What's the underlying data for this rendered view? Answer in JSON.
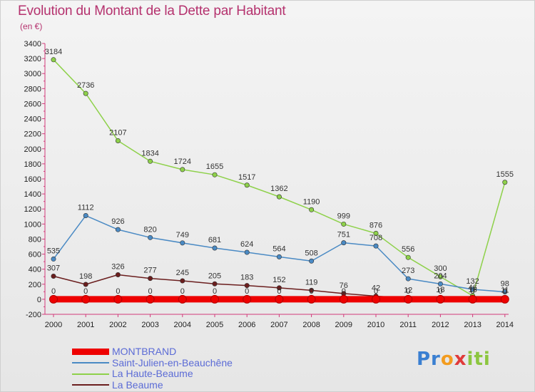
{
  "header": {
    "title": "Evolution du Montant de la Dette par Habitant",
    "unit": "(en €)"
  },
  "logo": {
    "text": "Proxiti"
  },
  "chart_data": {
    "type": "line",
    "title": "Evolution du Montant de la Dette par Habitant",
    "subtitle": "(en €)",
    "xlabel": "",
    "ylabel": "",
    "x": [
      "2000",
      "2001",
      "2002",
      "2003",
      "2004",
      "2005",
      "2006",
      "2007",
      "2008",
      "2009",
      "2010",
      "2011",
      "2012",
      "2013",
      "2014"
    ],
    "ylim": [
      -200,
      3400
    ],
    "yticks": [
      -200,
      0,
      200,
      400,
      600,
      800,
      1000,
      1200,
      1400,
      1600,
      1800,
      2000,
      2200,
      2400,
      2600,
      2800,
      3000,
      3200,
      3400
    ],
    "grid": false,
    "legend_position": "bottom-left",
    "series": [
      {
        "name": "MONTBRAND",
        "color": "#ee0000",
        "values": [
          0,
          0,
          0,
          0,
          0,
          0,
          0,
          0,
          0,
          0,
          0,
          0,
          0,
          0,
          0
        ],
        "labels": [
          "0",
          "0",
          "0",
          "0",
          "0",
          "0",
          "0",
          "0",
          "0",
          "0",
          "0",
          "0",
          "0",
          "0",
          "0"
        ]
      },
      {
        "name": "Saint-Julien-en-Beauchêne",
        "color": "#4a8ac4",
        "values": [
          535,
          1112,
          926,
          820,
          749,
          681,
          624,
          564,
          508,
          751,
          708,
          273,
          204,
          132,
          98
        ],
        "labels": [
          "535",
          "1112",
          "926",
          "820",
          "749",
          "681",
          "624",
          "564",
          "508",
          "751",
          "708",
          "273",
          "204",
          "132",
          "98"
        ]
      },
      {
        "name": "La Haute-Beaume",
        "color": "#8ed14a",
        "values": [
          3184,
          2736,
          2107,
          1834,
          1724,
          1655,
          1517,
          1362,
          1190,
          999,
          876,
          556,
          300,
          46,
          1555
        ],
        "labels": [
          "3184",
          "2736",
          "2107",
          "1834",
          "1724",
          "1655",
          "1517",
          "1362",
          "1190",
          "999",
          "876",
          "556",
          "300",
          "46",
          "1555"
        ]
      },
      {
        "name": "La Beaume",
        "color": "#6b1e1e",
        "values": [
          307,
          198,
          326,
          277,
          245,
          205,
          183,
          152,
          119,
          76,
          42,
          12,
          18,
          16,
          11
        ],
        "labels": [
          "307",
          "198",
          "326",
          "277",
          "245",
          "205",
          "183",
          "152",
          "119",
          "76",
          "42",
          "12",
          "18",
          "16",
          "11"
        ]
      }
    ]
  }
}
